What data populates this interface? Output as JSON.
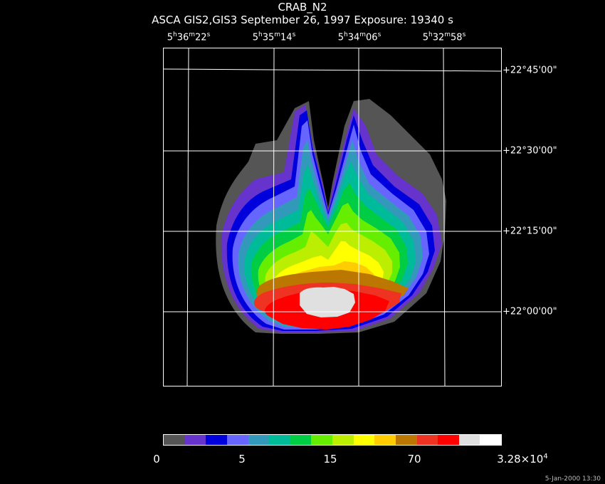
{
  "title": "CRAB_N2",
  "subtitle": "ASCA GIS2,GIS3 September 26, 1997 Exposure: 19340 s",
  "ra_ticks": [
    {
      "h": "5",
      "hu": "h",
      "m": "36",
      "mu": "m",
      "s": "22",
      "su": "s"
    },
    {
      "h": "5",
      "hu": "h",
      "m": "35",
      "mu": "m",
      "s": "14",
      "su": "s"
    },
    {
      "h": "5",
      "hu": "h",
      "m": "34",
      "mu": "m",
      "s": "06",
      "su": "s"
    },
    {
      "h": "5",
      "hu": "h",
      "m": "32",
      "mu": "m",
      "s": "58",
      "su": "s"
    }
  ],
  "dec_ticks": [
    "+22°45'00\"",
    "+22°30'00\"",
    "+22°15'00\"",
    "+22°00'00\""
  ],
  "colorbar": {
    "colors": [
      "#555555",
      "#6633cc",
      "#0000dd",
      "#6666ff",
      "#3399bb",
      "#00bb99",
      "#00cc44",
      "#66ee00",
      "#bbee00",
      "#ffff00",
      "#ffcc00",
      "#bb7700",
      "#ee3322",
      "#ff0000",
      "#e0e0e0",
      "#ffffff"
    ],
    "labels": [
      {
        "text": "0"
      },
      {
        "text": "5"
      },
      {
        "text": "15"
      },
      {
        "text": "70"
      },
      {
        "text": "3.28×10",
        "sup": "4"
      }
    ]
  },
  "timestamp": "5-Jan-2000 13:30"
}
